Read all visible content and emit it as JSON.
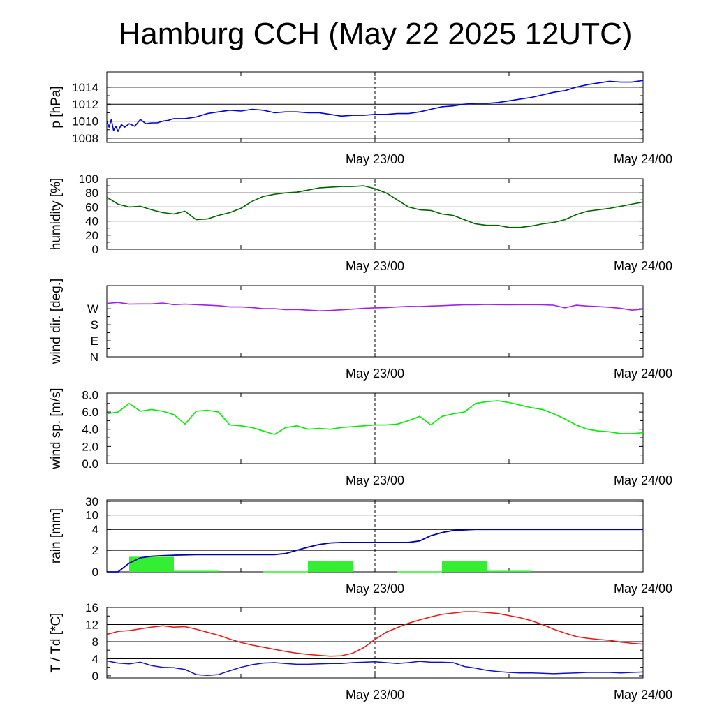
{
  "title": "Hamburg CCH (May 22 2025 12UTC)",
  "x_tick_labels": [
    "May 23/00",
    "May 24/00"
  ],
  "chart_data": [
    {
      "type": "line",
      "ylabel": "p [hPa]",
      "ylim": [
        1007.5,
        1015.8
      ],
      "y_ticks": [
        1008,
        1010,
        1012,
        1014
      ],
      "grid_y": [
        1008,
        1010,
        1012,
        1014
      ],
      "color": "#0000dd",
      "x_hours": [
        0,
        0.2,
        0.4,
        0.6,
        0.8,
        1,
        1.3,
        1.6,
        2,
        2.5,
        3,
        3.5,
        4,
        4.5,
        5,
        5.5,
        6,
        7,
        8,
        9,
        10,
        11,
        12,
        13,
        14,
        15,
        16,
        17,
        18,
        19,
        20,
        21,
        22,
        23,
        24,
        25,
        26,
        27,
        28,
        29,
        30,
        31,
        32,
        33,
        34,
        35,
        36,
        37,
        38,
        39,
        40,
        41,
        42,
        43,
        44,
        45,
        46,
        47,
        48
      ],
      "values": [
        1010.0,
        1009.3,
        1010.2,
        1008.9,
        1009.4,
        1008.8,
        1009.6,
        1009.3,
        1009.7,
        1009.4,
        1010.2,
        1009.7,
        1009.8,
        1009.8,
        1010.0,
        1010.1,
        1010.3,
        1010.3,
        1010.5,
        1010.9,
        1011.1,
        1011.3,
        1011.2,
        1011.4,
        1011.3,
        1011.0,
        1011.1,
        1011.1,
        1011.0,
        1011.0,
        1010.8,
        1010.6,
        1010.7,
        1010.7,
        1010.8,
        1010.8,
        1010.9,
        1010.9,
        1011.1,
        1011.4,
        1011.7,
        1011.8,
        1012.0,
        1012.1,
        1012.1,
        1012.2,
        1012.4,
        1012.6,
        1012.8,
        1013.1,
        1013.4,
        1013.6,
        1014.0,
        1014.3,
        1014.5,
        1014.7,
        1014.6,
        1014.6,
        1014.8
      ]
    },
    {
      "type": "line",
      "ylabel": "humidity [%]",
      "ylim": [
        0,
        100
      ],
      "y_ticks": [
        0,
        20,
        40,
        60,
        80,
        100
      ],
      "grid_y": [
        40,
        60,
        80
      ],
      "color": "#006400",
      "x_hours": [
        0,
        1,
        2,
        3,
        4,
        5,
        6,
        7,
        8,
        9,
        10,
        11,
        12,
        13,
        14,
        15,
        16,
        17,
        18,
        19,
        20,
        21,
        22,
        23,
        24,
        25,
        26,
        27,
        28,
        29,
        30,
        31,
        32,
        33,
        34,
        35,
        36,
        37,
        38,
        39,
        40,
        41,
        42,
        43,
        44,
        45,
        46,
        47,
        48
      ],
      "values": [
        74,
        64,
        60,
        61,
        56,
        52,
        50,
        54,
        42,
        43,
        48,
        52,
        58,
        68,
        75,
        78,
        80,
        81,
        84,
        87,
        88,
        89,
        89,
        90,
        86,
        80,
        70,
        60,
        56,
        55,
        50,
        48,
        42,
        36,
        34,
        34,
        31,
        31,
        33,
        36,
        38,
        42,
        49,
        54,
        56,
        58,
        61,
        64,
        67
      ]
    },
    {
      "type": "line",
      "ylabel": "wind dir. [deg.]",
      "ylim": [
        0,
        400
      ],
      "y_ticks": [
        0,
        90,
        180,
        270
      ],
      "y_tick_labels": [
        "N",
        "E",
        "S",
        "W"
      ],
      "grid_y": [],
      "color": "#a020f0",
      "x_hours": [
        0,
        1,
        2,
        3,
        4,
        5,
        6,
        7,
        8,
        9,
        10,
        11,
        12,
        13,
        14,
        15,
        16,
        17,
        18,
        19,
        20,
        21,
        22,
        23,
        24,
        25,
        26,
        27,
        28,
        29,
        30,
        31,
        32,
        33,
        34,
        35,
        36,
        37,
        38,
        39,
        40,
        41,
        42,
        43,
        44,
        45,
        46,
        47,
        48
      ],
      "values": [
        300,
        305,
        296,
        297,
        297,
        302,
        293,
        296,
        293,
        290,
        287,
        280,
        280,
        277,
        270,
        270,
        265,
        266,
        262,
        258,
        260,
        264,
        268,
        272,
        275,
        276,
        280,
        283,
        282,
        285,
        287,
        290,
        292,
        292,
        294,
        293,
        292,
        293,
        293,
        292,
        290,
        275,
        290,
        285,
        282,
        278,
        272,
        262,
        268
      ]
    },
    {
      "type": "line",
      "ylabel": "wind sp. [m/s]",
      "ylim": [
        0,
        8.2
      ],
      "y_ticks": [
        0.0,
        2.0,
        4.0,
        6.0,
        8.0
      ],
      "y_tick_labels": [
        "0.0",
        "2.0",
        "4.0",
        "6.0",
        "8.0"
      ],
      "grid_y": [],
      "color": "#00ee00",
      "x_hours": [
        0,
        1,
        2,
        3,
        4,
        5,
        6,
        7,
        8,
        9,
        10,
        11,
        12,
        13,
        14,
        15,
        16,
        17,
        18,
        19,
        20,
        21,
        22,
        23,
        24,
        25,
        26,
        27,
        28,
        29,
        30,
        31,
        32,
        33,
        34,
        35,
        36,
        37,
        38,
        39,
        40,
        41,
        42,
        43,
        44,
        45,
        46,
        47,
        48
      ],
      "values": [
        5.8,
        6.0,
        7.0,
        6.1,
        6.3,
        6.1,
        5.7,
        4.6,
        6.1,
        6.2,
        6.0,
        4.5,
        4.4,
        4.2,
        3.8,
        3.4,
        4.2,
        4.4,
        4.0,
        4.1,
        4.0,
        4.2,
        4.3,
        4.4,
        4.5,
        4.5,
        4.6,
        5.0,
        5.5,
        4.5,
        5.5,
        5.8,
        6.0,
        7.0,
        7.2,
        7.3,
        7.1,
        6.8,
        6.5,
        6.3,
        5.8,
        5.2,
        4.5,
        4.0,
        3.8,
        3.7,
        3.5,
        3.5,
        3.6
      ]
    },
    {
      "type": "bar",
      "ylabel": "rain [mm]",
      "y_ticks": [
        0,
        2,
        4,
        10,
        30
      ],
      "grid_y": [
        2,
        4,
        10,
        30
      ],
      "bar_color": "#33ee33",
      "line_color": "#0000aa",
      "bars": [
        {
          "x_hours": [
            2,
            6
          ],
          "value": 1.4
        },
        {
          "x_hours": [
            6,
            10
          ],
          "value": 0.1
        },
        {
          "x_hours": [
            14,
            18
          ],
          "value": 0.05
        },
        {
          "x_hours": [
            18,
            22
          ],
          "value": 1.0
        },
        {
          "x_hours": [
            26,
            30
          ],
          "value": 0.05
        },
        {
          "x_hours": [
            30,
            34
          ],
          "value": 1.0
        },
        {
          "x_hours": [
            34,
            38
          ],
          "value": 0.1
        }
      ],
      "cumulative_x_hours": [
        0,
        1,
        2,
        3,
        4,
        5,
        6,
        8,
        10,
        12,
        14,
        15,
        16,
        17,
        18,
        19,
        20,
        21,
        22,
        23,
        24,
        25,
        26,
        27,
        28,
        29,
        30,
        31,
        32,
        33,
        34,
        36,
        38,
        40,
        42,
        44,
        46,
        48
      ],
      "cumulative_values": [
        0,
        0,
        0.8,
        1.3,
        1.45,
        1.5,
        1.55,
        1.6,
        1.6,
        1.6,
        1.6,
        1.6,
        1.7,
        2.0,
        2.3,
        2.55,
        2.7,
        2.75,
        2.75,
        2.75,
        2.75,
        2.75,
        2.75,
        2.75,
        2.9,
        3.4,
        3.7,
        3.9,
        3.95,
        4.0,
        4.0,
        4.0,
        4.0,
        4.0,
        4.0,
        4.0,
        4.0,
        4.0
      ]
    },
    {
      "type": "line",
      "ylabel": "T / Td [*C]",
      "ylim": [
        -0.5,
        16
      ],
      "y_ticks": [
        0,
        4,
        8,
        12,
        16
      ],
      "grid_y": [
        4,
        8,
        12
      ],
      "series_colors": [
        "#ee1111",
        "#1111cc"
      ],
      "x_hours": [
        0,
        1,
        2,
        3,
        4,
        5,
        6,
        7,
        8,
        9,
        10,
        11,
        12,
        13,
        14,
        15,
        16,
        17,
        18,
        19,
        20,
        21,
        22,
        23,
        24,
        25,
        26,
        27,
        28,
        29,
        30,
        31,
        32,
        33,
        34,
        35,
        36,
        37,
        38,
        39,
        40,
        41,
        42,
        43,
        44,
        45,
        46,
        47,
        48
      ],
      "series": [
        {
          "values": [
            9.7,
            10.4,
            10.6,
            11.0,
            11.4,
            11.7,
            11.4,
            11.5,
            10.9,
            10.2,
            9.5,
            8.6,
            7.8,
            7.2,
            6.7,
            6.2,
            5.7,
            5.3,
            5.0,
            4.8,
            4.6,
            4.7,
            5.3,
            6.6,
            8.5,
            10.2,
            11.3,
            12.3,
            13.1,
            13.8,
            14.4,
            14.7,
            15.0,
            15.0,
            14.8,
            14.6,
            14.1,
            13.6,
            12.9,
            12.0,
            10.9,
            10.0,
            9.2,
            8.8,
            8.5,
            8.3,
            7.9,
            7.6,
            7.4
          ]
        },
        {
          "values": [
            3.5,
            3.0,
            2.8,
            3.2,
            2.4,
            2.0,
            1.9,
            1.5,
            0.3,
            0.1,
            0.3,
            1.2,
            2.0,
            2.6,
            3.0,
            3.1,
            2.9,
            2.7,
            2.7,
            2.8,
            2.9,
            2.9,
            3.1,
            3.2,
            3.3,
            3.1,
            2.9,
            3.1,
            3.4,
            3.2,
            3.2,
            3.1,
            2.2,
            1.8,
            1.3,
            1.0,
            0.8,
            0.7,
            0.7,
            0.6,
            0.5,
            0.6,
            0.7,
            0.8,
            0.8,
            0.8,
            0.7,
            0.8,
            0.9
          ]
        }
      ]
    }
  ]
}
